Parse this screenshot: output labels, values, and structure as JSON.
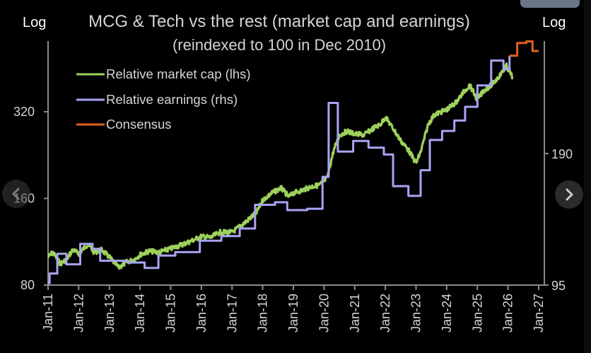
{
  "chart_data": {
    "type": "line",
    "title": "MCG & Tech vs the rest (market cap and earnings)",
    "subtitle": "(reindexed to 100 in Dec 2010)",
    "left_axis": {
      "label": "Log",
      "scale": "log",
      "ticks": [
        80,
        160,
        320
      ],
      "tick_labels": [
        "80",
        "160",
        "320"
      ],
      "range": [
        80,
        510
      ]
    },
    "right_axis": {
      "label": "Log",
      "scale": "log",
      "ticks": [
        95,
        190
      ],
      "tick_labels": [
        "95",
        "190"
      ],
      "range": [
        95,
        380
      ]
    },
    "x_axis": {
      "range": [
        2011,
        2027
      ],
      "ticks": [
        2011,
        2012,
        2013,
        2014,
        2015,
        2016,
        2017,
        2018,
        2019,
        2020,
        2021,
        2022,
        2023,
        2024,
        2025,
        2026,
        2027
      ],
      "tick_labels": [
        "Jan-11",
        "Jan-12",
        "Jan-13",
        "Jan-14",
        "Jan-15",
        "Jan-16",
        "Jan-17",
        "Jan-18",
        "Jan-19",
        "Jan-20",
        "Jan-21",
        "Jan-22",
        "Jan-23",
        "Jan-24",
        "Jan-25",
        "Jan-26",
        "Jan-27"
      ]
    },
    "grid": false,
    "legend_position": "top-left",
    "series": [
      {
        "name": "Relative market cap (lhs)",
        "axis": "left",
        "color": "#9ed15c",
        "style": "noisy-line",
        "x": [
          2011.0,
          2011.15,
          2011.4,
          2011.6,
          2011.8,
          2012.0,
          2012.3,
          2012.5,
          2012.75,
          2013.0,
          2013.3,
          2013.55,
          2013.8,
          2014.0,
          2014.3,
          2014.6,
          2015.0,
          2015.3,
          2015.6,
          2016.0,
          2016.3,
          2016.6,
          2017.0,
          2017.3,
          2017.5,
          2017.8,
          2018.0,
          2018.3,
          2018.6,
          2018.85,
          2019.0,
          2019.3,
          2019.6,
          2019.85,
          2020.1,
          2020.3,
          2020.5,
          2020.75,
          2021.0,
          2021.3,
          2021.6,
          2021.85,
          2022.0,
          2022.25,
          2022.5,
          2022.75,
          2023.0,
          2023.15,
          2023.4,
          2023.6,
          2024.0,
          2024.3,
          2024.6,
          2024.75,
          2025.0,
          2025.2,
          2025.5,
          2025.75,
          2025.95,
          2026.15
        ],
        "values": [
          100,
          104,
          95,
          98,
          106,
          103,
          111,
          104,
          106,
          100,
          92,
          96,
          98,
          102,
          105,
          104,
          107,
          110,
          113,
          118,
          117,
          122,
          122,
          129,
          134,
          143,
          158,
          167,
          174,
          162,
          167,
          171,
          176,
          178,
          188,
          232,
          265,
          274,
          268,
          266,
          280,
          290,
          307,
          280,
          254,
          236,
          212,
          232,
          290,
          313,
          325,
          345,
          380,
          396,
          352,
          378,
          400,
          430,
          462,
          420
        ]
      },
      {
        "name": "Relative earnings (rhs)",
        "axis": "right",
        "color": "#a8a4f4",
        "style": "step",
        "x": [
          2011.0,
          2011.05,
          2011.3,
          2011.6,
          2012.05,
          2012.45,
          2012.7,
          2013.6,
          2014.15,
          2014.6,
          2015.15,
          2015.95,
          2016.65,
          2017.25,
          2017.75,
          2018.4,
          2018.8,
          2019.45,
          2019.95,
          2020.15,
          2020.45,
          2020.95,
          2021.45,
          2021.95,
          2022.25,
          2022.75,
          2023.15,
          2023.45,
          2023.85,
          2024.25,
          2024.6,
          2025.0,
          2025.45,
          2025.85,
          2026.05
        ],
        "values": [
          96,
          101,
          112,
          106,
          118,
          115,
          108,
          107,
          104,
          111,
          113,
          120,
          123,
          128,
          145,
          147,
          141,
          142,
          168,
          248,
          192,
          203,
          196,
          189,
          160,
          152,
          174,
          204,
          214,
          226,
          243,
          272,
          310,
          296,
          318
        ]
      },
      {
        "name": "Consensus",
        "axis": "right",
        "color": "#e2601f",
        "style": "step",
        "x": [
          2026.05,
          2026.3,
          2026.6,
          2026.8,
          2027.0
        ],
        "values": [
          318,
          340,
          343,
          326,
          326
        ]
      }
    ]
  },
  "nav": {
    "prev_icon": "chevron-left-icon",
    "next_icon": "chevron-right-icon"
  }
}
